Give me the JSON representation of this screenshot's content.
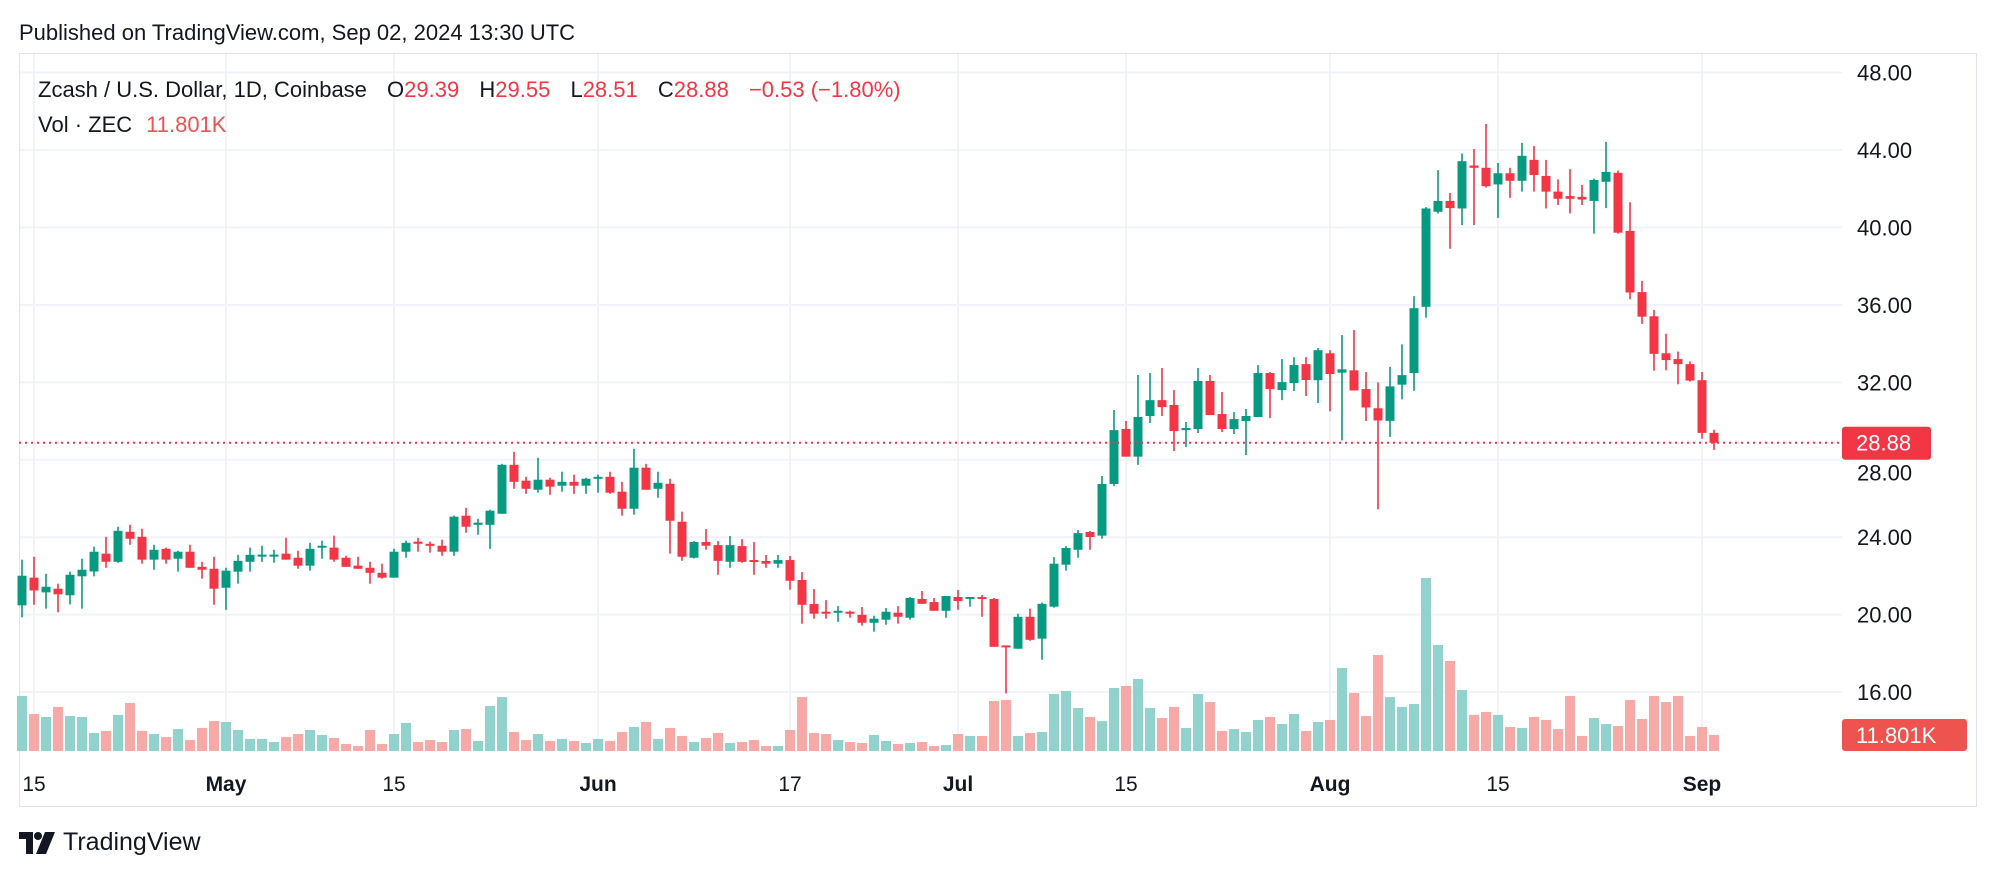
{
  "header": {
    "published": "Published on TradingView.com, Sep 02, 2024 13:30 UTC"
  },
  "legend": {
    "symbol": "Zcash / U.S. Dollar, 1D, Coinbase",
    "o_label": "O",
    "o_value": "29.39",
    "h_label": "H",
    "h_value": "29.55",
    "l_label": "L",
    "l_value": "28.51",
    "c_label": "C",
    "c_value": "28.88",
    "change": "−0.53 (−1.80%)",
    "vol_label": "Vol · ZEC",
    "vol_value": "11.801K"
  },
  "price_axis": {
    "ticks": [
      "48.00",
      "44.00",
      "40.00",
      "36.00",
      "32.00",
      "28.00",
      "24.00",
      "20.00",
      "16.00"
    ],
    "last_price_label": "28.88",
    "last_volume_label": "11.801K"
  },
  "time_axis": [
    {
      "label": "15",
      "date": "2024-04-15",
      "bold": false
    },
    {
      "label": "May",
      "date": "2024-05-01",
      "bold": true
    },
    {
      "label": "15",
      "date": "2024-05-15",
      "bold": false
    },
    {
      "label": "Jun",
      "date": "2024-06-01",
      "bold": true
    },
    {
      "label": "17",
      "date": "2024-06-17",
      "bold": false
    },
    {
      "label": "Jul",
      "date": "2024-07-01",
      "bold": true
    },
    {
      "label": "15",
      "date": "2024-07-15",
      "bold": false
    },
    {
      "label": "Aug",
      "date": "2024-08-01",
      "bold": true
    },
    {
      "label": "15",
      "date": "2024-08-15",
      "bold": false
    },
    {
      "label": "Sep",
      "date": "2024-09-01",
      "bold": true
    }
  ],
  "colors": {
    "up": "#089981",
    "down": "#f23645",
    "up_volume": "#92d2cc",
    "down_volume": "#f7a9a7",
    "volume_label": "#ef5350",
    "grid": "#f0f3fa"
  },
  "footer": {
    "brand": "TradingView"
  },
  "chart_data": {
    "type": "candlestick",
    "symbol": "Zcash / U.S. Dollar",
    "interval": "1D",
    "exchange": "Coinbase",
    "ylim": [
      14.5,
      49
    ],
    "grid": true,
    "last_price": 28.88,
    "volume_unit": "K ZEC",
    "columns": [
      "date",
      "open",
      "high",
      "low",
      "close",
      "volume"
    ],
    "rows": [
      [
        "2024-04-14",
        20.48,
        22.84,
        19.86,
        22.01,
        40.6
      ],
      [
        "2024-04-15",
        21.91,
        22.99,
        20.51,
        21.25,
        27.3
      ],
      [
        "2024-04-16",
        21.15,
        22.11,
        20.31,
        21.44,
        25.1
      ],
      [
        "2024-04-17",
        21.34,
        21.6,
        20.12,
        21.05,
        32.5
      ],
      [
        "2024-04-18",
        21.0,
        22.22,
        20.53,
        22.06,
        25.8
      ],
      [
        "2024-04-19",
        21.98,
        22.89,
        20.31,
        22.32,
        25.1
      ],
      [
        "2024-04-20",
        22.23,
        23.51,
        21.98,
        23.25,
        13.3
      ],
      [
        "2024-04-21",
        23.15,
        24.02,
        22.42,
        22.73,
        14.8
      ],
      [
        "2024-04-22",
        22.73,
        24.54,
        22.68,
        24.33,
        26.6
      ],
      [
        "2024-04-23",
        24.28,
        24.64,
        23.61,
        23.92,
        35.4
      ],
      [
        "2024-04-24",
        24.02,
        24.44,
        22.63,
        22.84,
        14.8
      ],
      [
        "2024-04-25",
        22.84,
        23.61,
        22.32,
        23.35,
        12.5
      ],
      [
        "2024-04-26",
        23.4,
        23.46,
        22.63,
        22.84,
        10.3
      ],
      [
        "2024-04-27",
        22.89,
        23.3,
        22.22,
        23.25,
        16.2
      ],
      [
        "2024-04-28",
        23.25,
        23.61,
        22.42,
        22.42,
        8.1
      ],
      [
        "2024-04-29",
        22.47,
        22.73,
        21.86,
        22.32,
        17.0
      ],
      [
        "2024-04-30",
        22.37,
        22.99,
        20.51,
        21.34,
        22.1
      ],
      [
        "2024-05-01",
        21.39,
        22.42,
        20.25,
        22.27,
        21.4
      ],
      [
        "2024-05-02",
        22.22,
        23.09,
        21.6,
        22.78,
        15.5
      ],
      [
        "2024-05-03",
        22.73,
        23.46,
        22.22,
        23.09,
        8.9
      ],
      [
        "2024-05-04",
        23.0,
        23.56,
        22.73,
        23.1,
        8.9
      ],
      [
        "2024-05-05",
        23.0,
        23.35,
        22.68,
        23.1,
        6.6
      ],
      [
        "2024-05-06",
        23.15,
        23.97,
        22.84,
        22.84,
        10.3
      ],
      [
        "2024-05-07",
        22.94,
        23.3,
        22.37,
        22.53,
        12.5
      ],
      [
        "2024-05-08",
        22.53,
        23.71,
        22.27,
        23.4,
        15.5
      ],
      [
        "2024-05-09",
        23.46,
        23.82,
        22.89,
        23.56,
        11.8
      ],
      [
        "2024-05-10",
        23.46,
        24.08,
        22.73,
        22.84,
        9.6
      ],
      [
        "2024-05-11",
        22.94,
        23.04,
        22.47,
        22.47,
        5.2
      ],
      [
        "2024-05-12",
        22.53,
        22.99,
        22.37,
        22.37,
        3.7
      ],
      [
        "2024-05-13",
        22.42,
        22.73,
        21.6,
        22.16,
        15.5
      ],
      [
        "2024-05-14",
        22.16,
        22.63,
        21.86,
        21.91,
        5.2
      ],
      [
        "2024-05-15",
        21.91,
        23.4,
        21.91,
        23.25,
        12.5
      ],
      [
        "2024-05-16",
        23.25,
        23.82,
        22.94,
        23.71,
        20.7
      ],
      [
        "2024-05-17",
        23.77,
        23.97,
        23.25,
        23.66,
        6.6
      ],
      [
        "2024-05-18",
        23.66,
        23.77,
        23.2,
        23.56,
        8.1
      ],
      [
        "2024-05-19",
        23.56,
        23.87,
        23.04,
        23.25,
        6.6
      ],
      [
        "2024-05-20",
        23.25,
        25.11,
        23.04,
        25.06,
        15.5
      ],
      [
        "2024-05-21",
        25.11,
        25.52,
        24.23,
        24.54,
        16.2
      ],
      [
        "2024-05-22",
        24.64,
        24.95,
        24.13,
        24.75,
        7.4
      ],
      [
        "2024-05-23",
        24.64,
        25.42,
        23.4,
        25.37,
        33.2
      ],
      [
        "2024-05-24",
        25.21,
        27.79,
        25.21,
        27.74,
        39.8
      ],
      [
        "2024-05-25",
        27.74,
        28.41,
        26.5,
        26.86,
        14.0
      ],
      [
        "2024-05-26",
        26.92,
        27.12,
        26.24,
        26.5,
        8.1
      ],
      [
        "2024-05-27",
        26.45,
        28.1,
        26.3,
        26.97,
        12.5
      ],
      [
        "2024-05-28",
        26.97,
        27.07,
        26.19,
        26.61,
        7.4
      ],
      [
        "2024-05-29",
        26.66,
        27.38,
        26.35,
        26.86,
        8.9
      ],
      [
        "2024-05-30",
        26.86,
        27.23,
        26.24,
        26.66,
        7.4
      ],
      [
        "2024-05-31",
        26.66,
        27.07,
        26.24,
        27.02,
        5.9
      ],
      [
        "2024-06-01",
        27.02,
        27.23,
        26.3,
        27.12,
        8.9
      ],
      [
        "2024-06-02",
        27.12,
        27.38,
        26.24,
        26.3,
        7.4
      ],
      [
        "2024-06-03",
        26.35,
        26.86,
        25.11,
        25.47,
        14.0
      ],
      [
        "2024-06-04",
        25.47,
        28.57,
        25.16,
        27.59,
        17.7
      ],
      [
        "2024-06-05",
        27.59,
        27.79,
        26.45,
        26.45,
        21.4
      ],
      [
        "2024-06-06",
        26.5,
        27.38,
        26.04,
        26.81,
        8.9
      ],
      [
        "2024-06-07",
        26.76,
        27.02,
        23.15,
        24.85,
        17.0
      ],
      [
        "2024-06-08",
        24.8,
        25.32,
        22.78,
        22.99,
        11.1
      ],
      [
        "2024-06-09",
        22.94,
        23.8,
        22.9,
        23.75,
        6.6
      ],
      [
        "2024-06-10",
        23.75,
        24.42,
        23.35,
        23.56,
        9.6
      ],
      [
        "2024-06-11",
        23.59,
        23.8,
        22.06,
        22.78,
        13.3
      ],
      [
        "2024-06-12",
        22.73,
        24.06,
        22.42,
        23.59,
        5.9
      ],
      [
        "2024-06-13",
        23.54,
        23.9,
        22.68,
        22.73,
        6.6
      ],
      [
        "2024-06-14",
        22.82,
        23.75,
        22.06,
        22.73,
        8.1
      ],
      [
        "2024-06-15",
        22.77,
        23.08,
        22.42,
        22.63,
        3.7
      ],
      [
        "2024-06-16",
        22.63,
        23.08,
        22.42,
        22.82,
        3.7
      ],
      [
        "2024-06-17",
        22.82,
        23.03,
        21.29,
        21.75,
        15.5
      ],
      [
        "2024-06-18",
        21.79,
        22.2,
        19.53,
        20.51,
        39.8
      ],
      [
        "2024-06-19",
        20.55,
        21.32,
        19.79,
        20.05,
        13.3
      ],
      [
        "2024-06-20",
        20.15,
        20.75,
        19.79,
        20.05,
        12.5
      ],
      [
        "2024-06-21",
        20.1,
        20.44,
        19.63,
        20.2,
        8.1
      ],
      [
        "2024-06-22",
        20.15,
        20.2,
        19.84,
        20.05,
        6.6
      ],
      [
        "2024-06-23",
        19.99,
        20.39,
        19.43,
        19.58,
        5.9
      ],
      [
        "2024-06-24",
        19.58,
        19.94,
        19.12,
        19.79,
        11.8
      ],
      [
        "2024-06-25",
        19.74,
        20.34,
        19.48,
        20.15,
        7.4
      ],
      [
        "2024-06-26",
        20.1,
        20.44,
        19.53,
        19.89,
        5.2
      ],
      [
        "2024-06-27",
        19.84,
        20.91,
        19.74,
        20.86,
        5.9
      ],
      [
        "2024-06-28",
        20.81,
        21.22,
        20.56,
        20.56,
        6.6
      ],
      [
        "2024-06-29",
        20.65,
        20.86,
        20.2,
        20.2,
        3.7
      ],
      [
        "2024-06-30",
        20.2,
        20.96,
        19.84,
        20.96,
        4.4
      ],
      [
        "2024-07-01",
        20.91,
        21.27,
        20.25,
        20.7,
        12.5
      ],
      [
        "2024-07-02",
        20.81,
        20.91,
        20.41,
        20.91,
        11.1
      ],
      [
        "2024-07-03",
        20.91,
        21.01,
        19.89,
        20.81,
        11.1
      ],
      [
        "2024-07-04",
        20.81,
        20.86,
        18.34,
        18.34,
        36.9
      ],
      [
        "2024-07-05",
        18.41,
        18.41,
        15.93,
        18.34,
        37.6
      ],
      [
        "2024-07-06",
        18.24,
        20.05,
        18.24,
        19.89,
        11.1
      ],
      [
        "2024-07-07",
        19.89,
        20.31,
        18.65,
        18.7,
        13.3
      ],
      [
        "2024-07-08",
        18.76,
        20.62,
        17.67,
        20.56,
        14.0
      ],
      [
        "2024-07-09",
        20.41,
        22.97,
        20.36,
        22.63,
        42.0
      ],
      [
        "2024-07-10",
        22.58,
        23.54,
        22.27,
        23.44,
        44.3
      ],
      [
        "2024-07-11",
        23.35,
        24.37,
        22.94,
        24.21,
        31.7
      ],
      [
        "2024-07-12",
        24.27,
        24.32,
        23.35,
        24.01,
        25.1
      ],
      [
        "2024-07-13",
        24.08,
        27.16,
        23.92,
        26.75,
        22.1
      ],
      [
        "2024-07-14",
        26.75,
        30.57,
        26.64,
        29.53,
        46.5
      ],
      [
        "2024-07-15",
        29.59,
        30.0,
        28.16,
        28.16,
        48.0
      ],
      [
        "2024-07-16",
        28.16,
        32.38,
        27.74,
        30.21,
        53.1
      ],
      [
        "2024-07-17",
        30.26,
        32.48,
        29.9,
        31.08,
        31.7
      ],
      [
        "2024-07-18",
        31.08,
        32.74,
        30.26,
        30.72,
        24.3
      ],
      [
        "2024-07-19",
        30.83,
        31.6,
        28.45,
        29.48,
        32.5
      ],
      [
        "2024-07-20",
        29.53,
        29.95,
        28.66,
        29.64,
        17.0
      ],
      [
        "2024-07-21",
        29.59,
        32.74,
        29.38,
        32.07,
        42.0
      ],
      [
        "2024-07-22",
        32.07,
        32.38,
        30.31,
        30.31,
        36.1
      ],
      [
        "2024-07-23",
        30.36,
        31.5,
        29.43,
        29.59,
        14.8
      ],
      [
        "2024-07-24",
        29.59,
        30.46,
        29.33,
        30.1,
        16.2
      ],
      [
        "2024-07-25",
        30.0,
        30.62,
        28.24,
        30.26,
        14.0
      ],
      [
        "2024-07-26",
        30.21,
        32.89,
        30.21,
        32.48,
        22.9
      ],
      [
        "2024-07-27",
        32.48,
        32.53,
        30.15,
        31.65,
        25.1
      ],
      [
        "2024-07-28",
        31.6,
        33.2,
        31.08,
        32.01,
        19.9
      ],
      [
        "2024-07-29",
        31.96,
        33.3,
        31.55,
        32.89,
        27.3
      ],
      [
        "2024-07-30",
        32.94,
        33.3,
        31.29,
        32.12,
        14.8
      ],
      [
        "2024-07-31",
        32.11,
        33.77,
        30.93,
        33.66,
        21.4
      ],
      [
        "2024-08-01",
        33.5,
        33.66,
        30.5,
        32.43,
        22.9
      ],
      [
        "2024-08-02",
        32.5,
        34.44,
        29.0,
        32.67,
        61.2
      ],
      [
        "2024-08-03",
        32.62,
        34.7,
        31.58,
        31.58,
        42.8
      ],
      [
        "2024-08-04",
        31.65,
        32.53,
        30.0,
        30.7,
        25.8
      ],
      [
        "2024-08-05",
        30.66,
        32.0,
        25.44,
        30.03,
        70.8
      ],
      [
        "2024-08-06",
        30.01,
        32.8,
        29.18,
        31.79,
        39.8
      ],
      [
        "2024-08-07",
        31.88,
        33.96,
        31.12,
        32.37,
        32.5
      ],
      [
        "2024-08-08",
        32.48,
        36.45,
        31.56,
        35.83,
        34.7
      ],
      [
        "2024-08-09",
        35.9,
        41.05,
        35.34,
        40.98,
        127.6
      ],
      [
        "2024-08-10",
        40.81,
        42.96,
        40.72,
        41.37,
        78.2
      ],
      [
        "2024-08-11",
        41.37,
        41.78,
        38.9,
        41.0,
        66.4
      ],
      [
        "2024-08-12",
        40.98,
        43.82,
        40.12,
        43.42,
        45.0
      ],
      [
        "2024-08-13",
        43.2,
        44.05,
        40.12,
        43.08,
        26.6
      ],
      [
        "2024-08-14",
        43.08,
        45.34,
        42.06,
        42.13,
        28.8
      ],
      [
        "2024-08-15",
        42.22,
        43.33,
        40.49,
        42.8,
        26.6
      ],
      [
        "2024-08-16",
        42.8,
        43.08,
        41.53,
        42.41,
        17.7
      ],
      [
        "2024-08-17",
        42.41,
        44.37,
        41.85,
        43.7,
        17.0
      ],
      [
        "2024-08-18",
        43.49,
        44.21,
        41.85,
        42.71,
        25.1
      ],
      [
        "2024-08-19",
        42.66,
        43.49,
        40.98,
        41.85,
        22.9
      ],
      [
        "2024-08-20",
        41.85,
        42.48,
        41.16,
        41.48,
        16.2
      ],
      [
        "2024-08-21",
        41.62,
        43.01,
        40.72,
        41.48,
        40.6
      ],
      [
        "2024-08-22",
        41.58,
        42.2,
        41.16,
        41.44,
        11.1
      ],
      [
        "2024-08-23",
        41.37,
        42.52,
        39.68,
        42.45,
        24.3
      ],
      [
        "2024-08-24",
        42.36,
        44.42,
        41.0,
        42.87,
        19.9
      ],
      [
        "2024-08-25",
        42.82,
        42.94,
        39.68,
        39.73,
        18.4
      ],
      [
        "2024-08-26",
        39.82,
        41.3,
        36.29,
        36.64,
        37.6
      ],
      [
        "2024-08-27",
        36.66,
        37.24,
        35.02,
        35.39,
        23.6
      ],
      [
        "2024-08-28",
        35.41,
        35.74,
        32.6,
        33.47,
        40.6
      ],
      [
        "2024-08-29",
        33.5,
        34.51,
        32.62,
        33.15,
        36.1
      ],
      [
        "2024-08-30",
        33.2,
        33.59,
        31.9,
        32.94,
        40.6
      ],
      [
        "2024-08-31",
        32.94,
        33.08,
        32.04,
        32.09,
        11.1
      ],
      [
        "2024-09-01",
        32.11,
        32.53,
        29.09,
        29.39,
        17.7
      ],
      [
        "2024-09-02",
        29.39,
        29.55,
        28.51,
        28.88,
        11.801
      ]
    ]
  }
}
